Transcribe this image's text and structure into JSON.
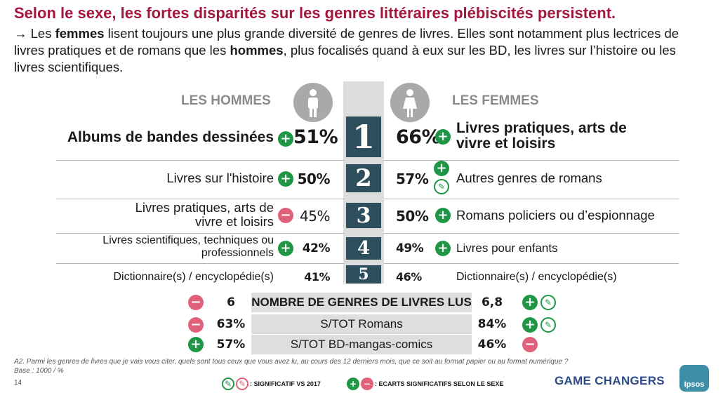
{
  "title": "Selon le sexe, les fortes disparités sur les genres littéraires plébiscités persistent.",
  "intro": {
    "arrow": "→",
    "p1": " Les ",
    "b1": "femmes",
    "p2": " lisent toujours une plus grande diversité de genres de livres. Elles sont notamment plus lectrices de livres pratiques et de romans que les ",
    "b2": "hommes",
    "p3": ", plus focalisés quand à eux sur les BD, les livres sur l’histoire ou les livres scientifiques."
  },
  "men_header": "LES HOMMES",
  "women_header": "LES FEMMES",
  "rows": [
    {
      "rank": "1",
      "men_label": "Albums de bandes dessinées",
      "men_pct": "51%",
      "women_pct": "66%",
      "women_label": "Livres pratiques, arts de vivre et loisirs"
    },
    {
      "rank": "2",
      "men_label": "Livres sur l'histoire",
      "men_pct": "50%",
      "women_pct": "57%",
      "women_label": "Autres genres de romans"
    },
    {
      "rank": "3",
      "men_label": "Livres pratiques, arts de vivre et loisirs",
      "men_pct": "45%",
      "women_pct": "50%",
      "women_label": "Romans policiers ou d’espionnage"
    },
    {
      "rank": "4",
      "men_label": "Livres scientifiques, techniques ou professionnels",
      "men_pct": "42%",
      "women_pct": "49%",
      "women_label": "Livres pour enfants"
    },
    {
      "rank": "5",
      "men_label": "Dictionnaire(s)  / encyclopédie(s)",
      "men_pct": "41%",
      "women_pct": "46%",
      "women_label": "Dictionnaire(s)  / encyclopédie(s)"
    }
  ],
  "summary": [
    {
      "men_value": "6",
      "label": "NOMBRE DE GENRES DE LIVRES LUS",
      "women_value": "6,8"
    },
    {
      "men_value": "63%",
      "label": "S/TOT Romans",
      "women_value": "84%"
    },
    {
      "men_value": "57%",
      "label": "S/TOT BD-mangas-comics",
      "women_value": "46%"
    }
  ],
  "footnote_question": "A2. Parmi les genres de livres que je vais vous citer, quels sont tous ceux que vous avez lu, au cours des 12 derniers mois, que ce soit au format papier ou au format numérique ?",
  "footnote_base": "Base : 1000 / %",
  "page_number": "14",
  "legend_vs2017": ": SIGNIFICATIF VS 2017",
  "legend_sexe": ": ECARTS SIGNIFICATIFS SELON LE SEXE",
  "brand_tagline": "GAME CHANGERS",
  "brand_logo": "Ipsos",
  "colors": {
    "title": "#a3173e",
    "rank_box": "#2d4e5c",
    "plus": "#1e9646",
    "minus": "#e2617a",
    "brand": "#2d4a87"
  }
}
